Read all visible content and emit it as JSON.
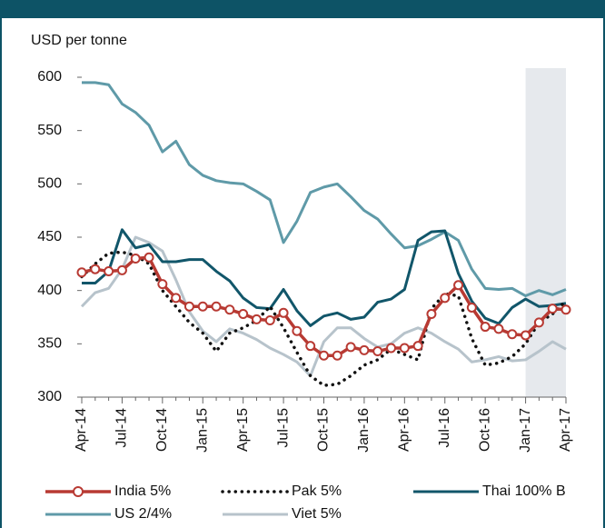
{
  "chart_data": {
    "type": "line",
    "ylabel": "USD per tonne",
    "categories": [
      "Apr-14",
      null,
      null,
      "Jul-14",
      null,
      null,
      "Oct-14",
      null,
      null,
      "Jan-15",
      null,
      null,
      "Apr-15",
      null,
      null,
      "Jul-15",
      null,
      null,
      "Oct-15",
      null,
      null,
      "Jan-16",
      null,
      null,
      "Apr-16",
      null,
      null,
      "Jul-16",
      null,
      null,
      "Oct-16",
      null,
      null,
      "Jan-17",
      null,
      null,
      "Apr-17"
    ],
    "highlight_start": "Jan-17",
    "ylim": [
      300,
      600
    ],
    "yticks": [
      300,
      350,
      400,
      450,
      500,
      550,
      600
    ],
    "series": [
      {
        "name": "India 5%",
        "color": "#b83a33",
        "style": "markers",
        "values": [
          417,
          420,
          418,
          419,
          430,
          431,
          406,
          393,
          385,
          385,
          385,
          382,
          378,
          373,
          372,
          379,
          362,
          348,
          339,
          339,
          347,
          344,
          343,
          346,
          346,
          348,
          378,
          393,
          405,
          384,
          366,
          364,
          359,
          358,
          370,
          383,
          382
        ]
      },
      {
        "name": "Pak 5%",
        "color": "#111111",
        "style": "dotted",
        "values": [
          413,
          425,
          435,
          436,
          433,
          425,
          400,
          385,
          370,
          360,
          343,
          360,
          365,
          372,
          385,
          365,
          342,
          320,
          311,
          312,
          320,
          330,
          335,
          345,
          340,
          335,
          383,
          397,
          395,
          355,
          330,
          332,
          338,
          350,
          370,
          378,
          390
        ]
      },
      {
        "name": "Thai 100% B",
        "color": "#11566a",
        "style": "solid",
        "values": [
          407,
          407,
          418,
          457,
          440,
          443,
          427,
          427,
          429,
          429,
          418,
          409,
          393,
          384,
          383,
          401,
          381,
          367,
          376,
          379,
          373,
          375,
          389,
          392,
          401,
          447,
          455,
          456,
          416,
          390,
          374,
          369,
          384,
          392,
          385,
          386,
          388
        ]
      },
      {
        "name": "US 2/4%",
        "color": "#5f9aa8",
        "style": "solid",
        "values": [
          595,
          595,
          593,
          575,
          567,
          555,
          530,
          540,
          518,
          508,
          503,
          501,
          500,
          493,
          485,
          445,
          465,
          492,
          497,
          500,
          488,
          475,
          467,
          453,
          440,
          442,
          448,
          455,
          447,
          420,
          402,
          401,
          402,
          395,
          400,
          396,
          401
        ]
      },
      {
        "name": "Viet 5%",
        "color": "#b7c3cb",
        "style": "solid",
        "values": [
          385,
          398,
          402,
          420,
          450,
          445,
          437,
          410,
          380,
          362,
          352,
          364,
          360,
          354,
          346,
          340,
          333,
          320,
          352,
          365,
          365,
          355,
          347,
          350,
          360,
          365,
          360,
          352,
          345,
          333,
          335,
          338,
          334,
          335,
          343,
          352,
          345
        ]
      }
    ]
  }
}
